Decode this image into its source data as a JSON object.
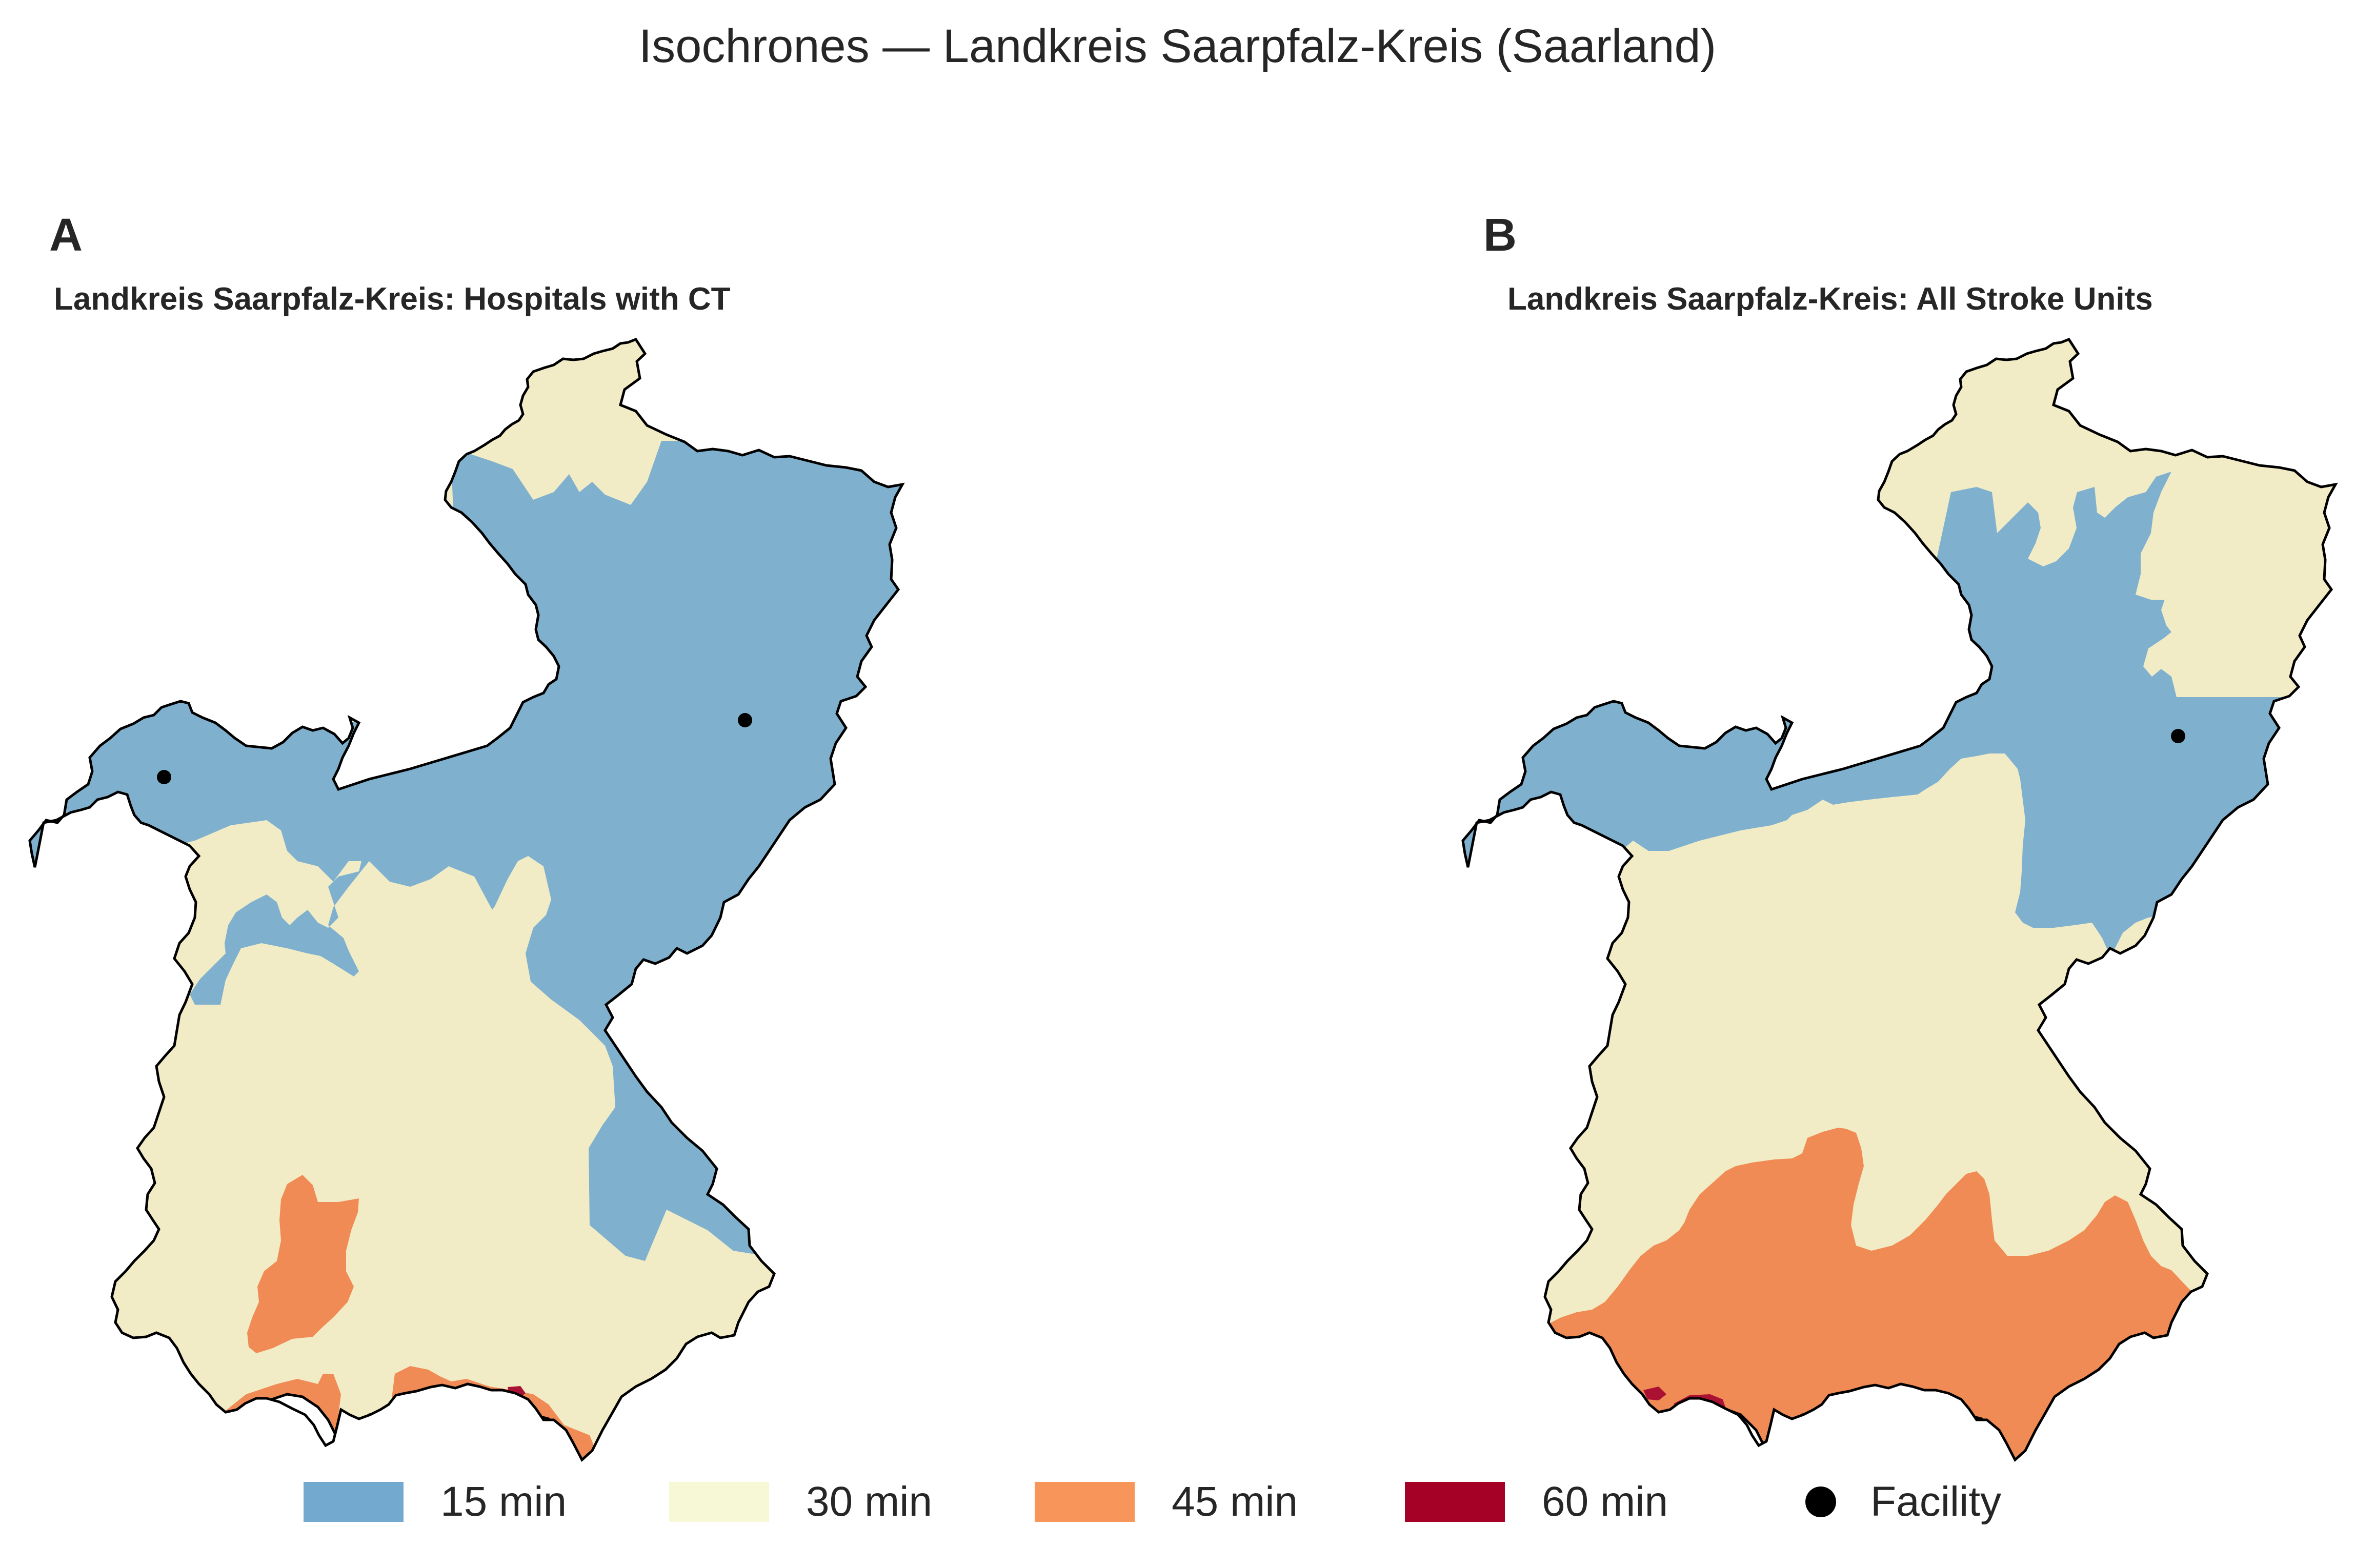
{
  "title": "Isochrones — Landkreis Saarpfalz-Kreis (Saarland)",
  "colors": {
    "min15": "#7fb1cf",
    "min30": "#f2ecc6",
    "min45": "#f08b55",
    "min60": "#aa1133",
    "boundary": "#000000",
    "facility": "#000000",
    "hole": "#ffffff"
  },
  "panels": [
    {
      "letter": "A",
      "title": "Landkreis Saarpfalz-Kreis: Hospitals with CT",
      "facilities": 2,
      "zones_present": [
        "15 min",
        "30 min",
        "45 min",
        "60 min"
      ]
    },
    {
      "letter": "B",
      "title": "Landkreis Saarpfalz-Kreis: All Stroke Units",
      "facilities": 1,
      "zones_present": [
        "15 min",
        "30 min",
        "45 min",
        "60 min"
      ]
    }
  ],
  "legend": {
    "items": [
      {
        "label": "15 min",
        "color": "#74a9cf",
        "kind": "patch"
      },
      {
        "label": "30 min",
        "color": "#f7f8d6",
        "kind": "patch"
      },
      {
        "label": "45 min",
        "color": "#f7955a",
        "kind": "patch"
      },
      {
        "label": "60 min",
        "color": "#a50026",
        "kind": "patch"
      },
      {
        "label": "Facility",
        "color": "#000000",
        "kind": "marker"
      }
    ]
  }
}
